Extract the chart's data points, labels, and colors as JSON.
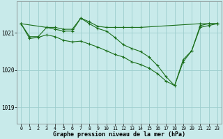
{
  "background_color": "#c8eaea",
  "grid_color": "#9ecece",
  "line_color": "#1a6e1a",
  "title": "Graphe pression niveau de la mer (hPa)",
  "xlim_min": -0.5,
  "xlim_max": 23.5,
  "ylim_min": 1018.55,
  "ylim_max": 1021.85,
  "yticks": [
    1019,
    1020,
    1021
  ],
  "xticks": [
    0,
    1,
    2,
    3,
    4,
    5,
    6,
    7,
    8,
    9,
    10,
    11,
    12,
    13,
    14,
    15,
    16,
    17,
    18,
    19,
    20,
    21,
    22,
    23
  ],
  "s1_x": [
    0,
    3,
    4,
    5,
    6,
    7,
    8,
    9,
    10,
    11,
    12,
    13,
    14,
    21,
    22,
    23
  ],
  "s1_y": [
    1021.25,
    1021.15,
    1021.15,
    1021.1,
    1021.1,
    1021.4,
    1021.3,
    1021.18,
    1021.15,
    1021.15,
    1021.15,
    1021.15,
    1021.15,
    1021.25,
    1021.25,
    1021.25
  ],
  "s2_x": [
    0,
    1,
    2,
    3,
    4,
    5,
    6,
    7,
    8,
    9,
    10,
    11,
    12,
    13,
    14,
    15,
    16,
    17,
    18,
    19,
    20,
    21,
    22,
    23
  ],
  "s2_y": [
    1021.25,
    1020.9,
    1020.9,
    1021.15,
    1021.1,
    1021.05,
    1021.05,
    1021.4,
    1021.25,
    1021.12,
    1021.05,
    1020.88,
    1020.68,
    1020.58,
    1020.5,
    1020.35,
    1020.12,
    1019.82,
    1019.58,
    1020.28,
    1020.52,
    1021.2,
    1021.25,
    1021.25
  ],
  "s3_x": [
    0,
    1,
    2,
    3,
    4,
    5,
    6,
    7,
    8,
    9,
    10,
    11,
    12,
    13,
    14,
    15,
    16,
    17,
    18,
    19,
    20,
    21,
    22,
    23
  ],
  "s3_y": [
    1021.25,
    1020.85,
    1020.88,
    1020.95,
    1020.9,
    1020.8,
    1020.76,
    1020.78,
    1020.7,
    1020.62,
    1020.52,
    1020.42,
    1020.35,
    1020.22,
    1020.15,
    1020.05,
    1019.9,
    1019.7,
    1019.58,
    1020.22,
    1020.52,
    1021.15,
    1021.2,
    1021.25
  ]
}
